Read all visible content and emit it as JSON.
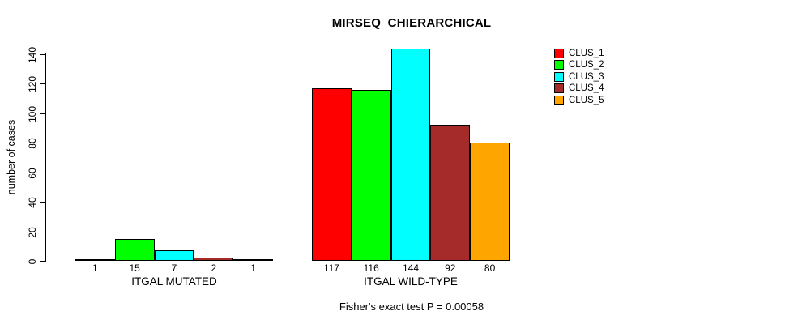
{
  "title": "MIRSEQ_CHIERARCHICAL",
  "subtitle": "Fisher's exact test P = 0.00058",
  "colors": {
    "background": "#FFFFFF",
    "axis": "#000000",
    "text": "#000000"
  },
  "chart_data": {
    "type": "bar",
    "title": "MIRSEQ_CHIERARCHICAL",
    "xlabel": "",
    "ylabel": "number of cases",
    "ylim": [
      0,
      140
    ],
    "yticks": [
      0,
      20,
      40,
      60,
      80,
      100,
      120,
      140
    ],
    "grid": false,
    "legend_position": "top-right",
    "categories": [
      "ITGAL MUTATED",
      "ITGAL WILD-TYPE"
    ],
    "series": [
      {
        "name": "CLUS_1",
        "color": "#FF0000",
        "values": [
          1,
          117
        ]
      },
      {
        "name": "CLUS_2",
        "color": "#00FF00",
        "values": [
          15,
          116
        ]
      },
      {
        "name": "CLUS_3",
        "color": "#00FFFF",
        "values": [
          7,
          144
        ]
      },
      {
        "name": "CLUS_4",
        "color": "#A52A2A",
        "values": [
          2,
          92
        ]
      },
      {
        "name": "CLUS_5",
        "color": "#FFA500",
        "values": [
          1,
          80
        ]
      }
    ],
    "bar_value_labels": [
      [
        "1",
        "15",
        "7",
        "2",
        "1"
      ],
      [
        "117",
        "116",
        "144",
        "92",
        "80"
      ]
    ],
    "annotation": "Fisher's exact test P = 0.00058"
  }
}
